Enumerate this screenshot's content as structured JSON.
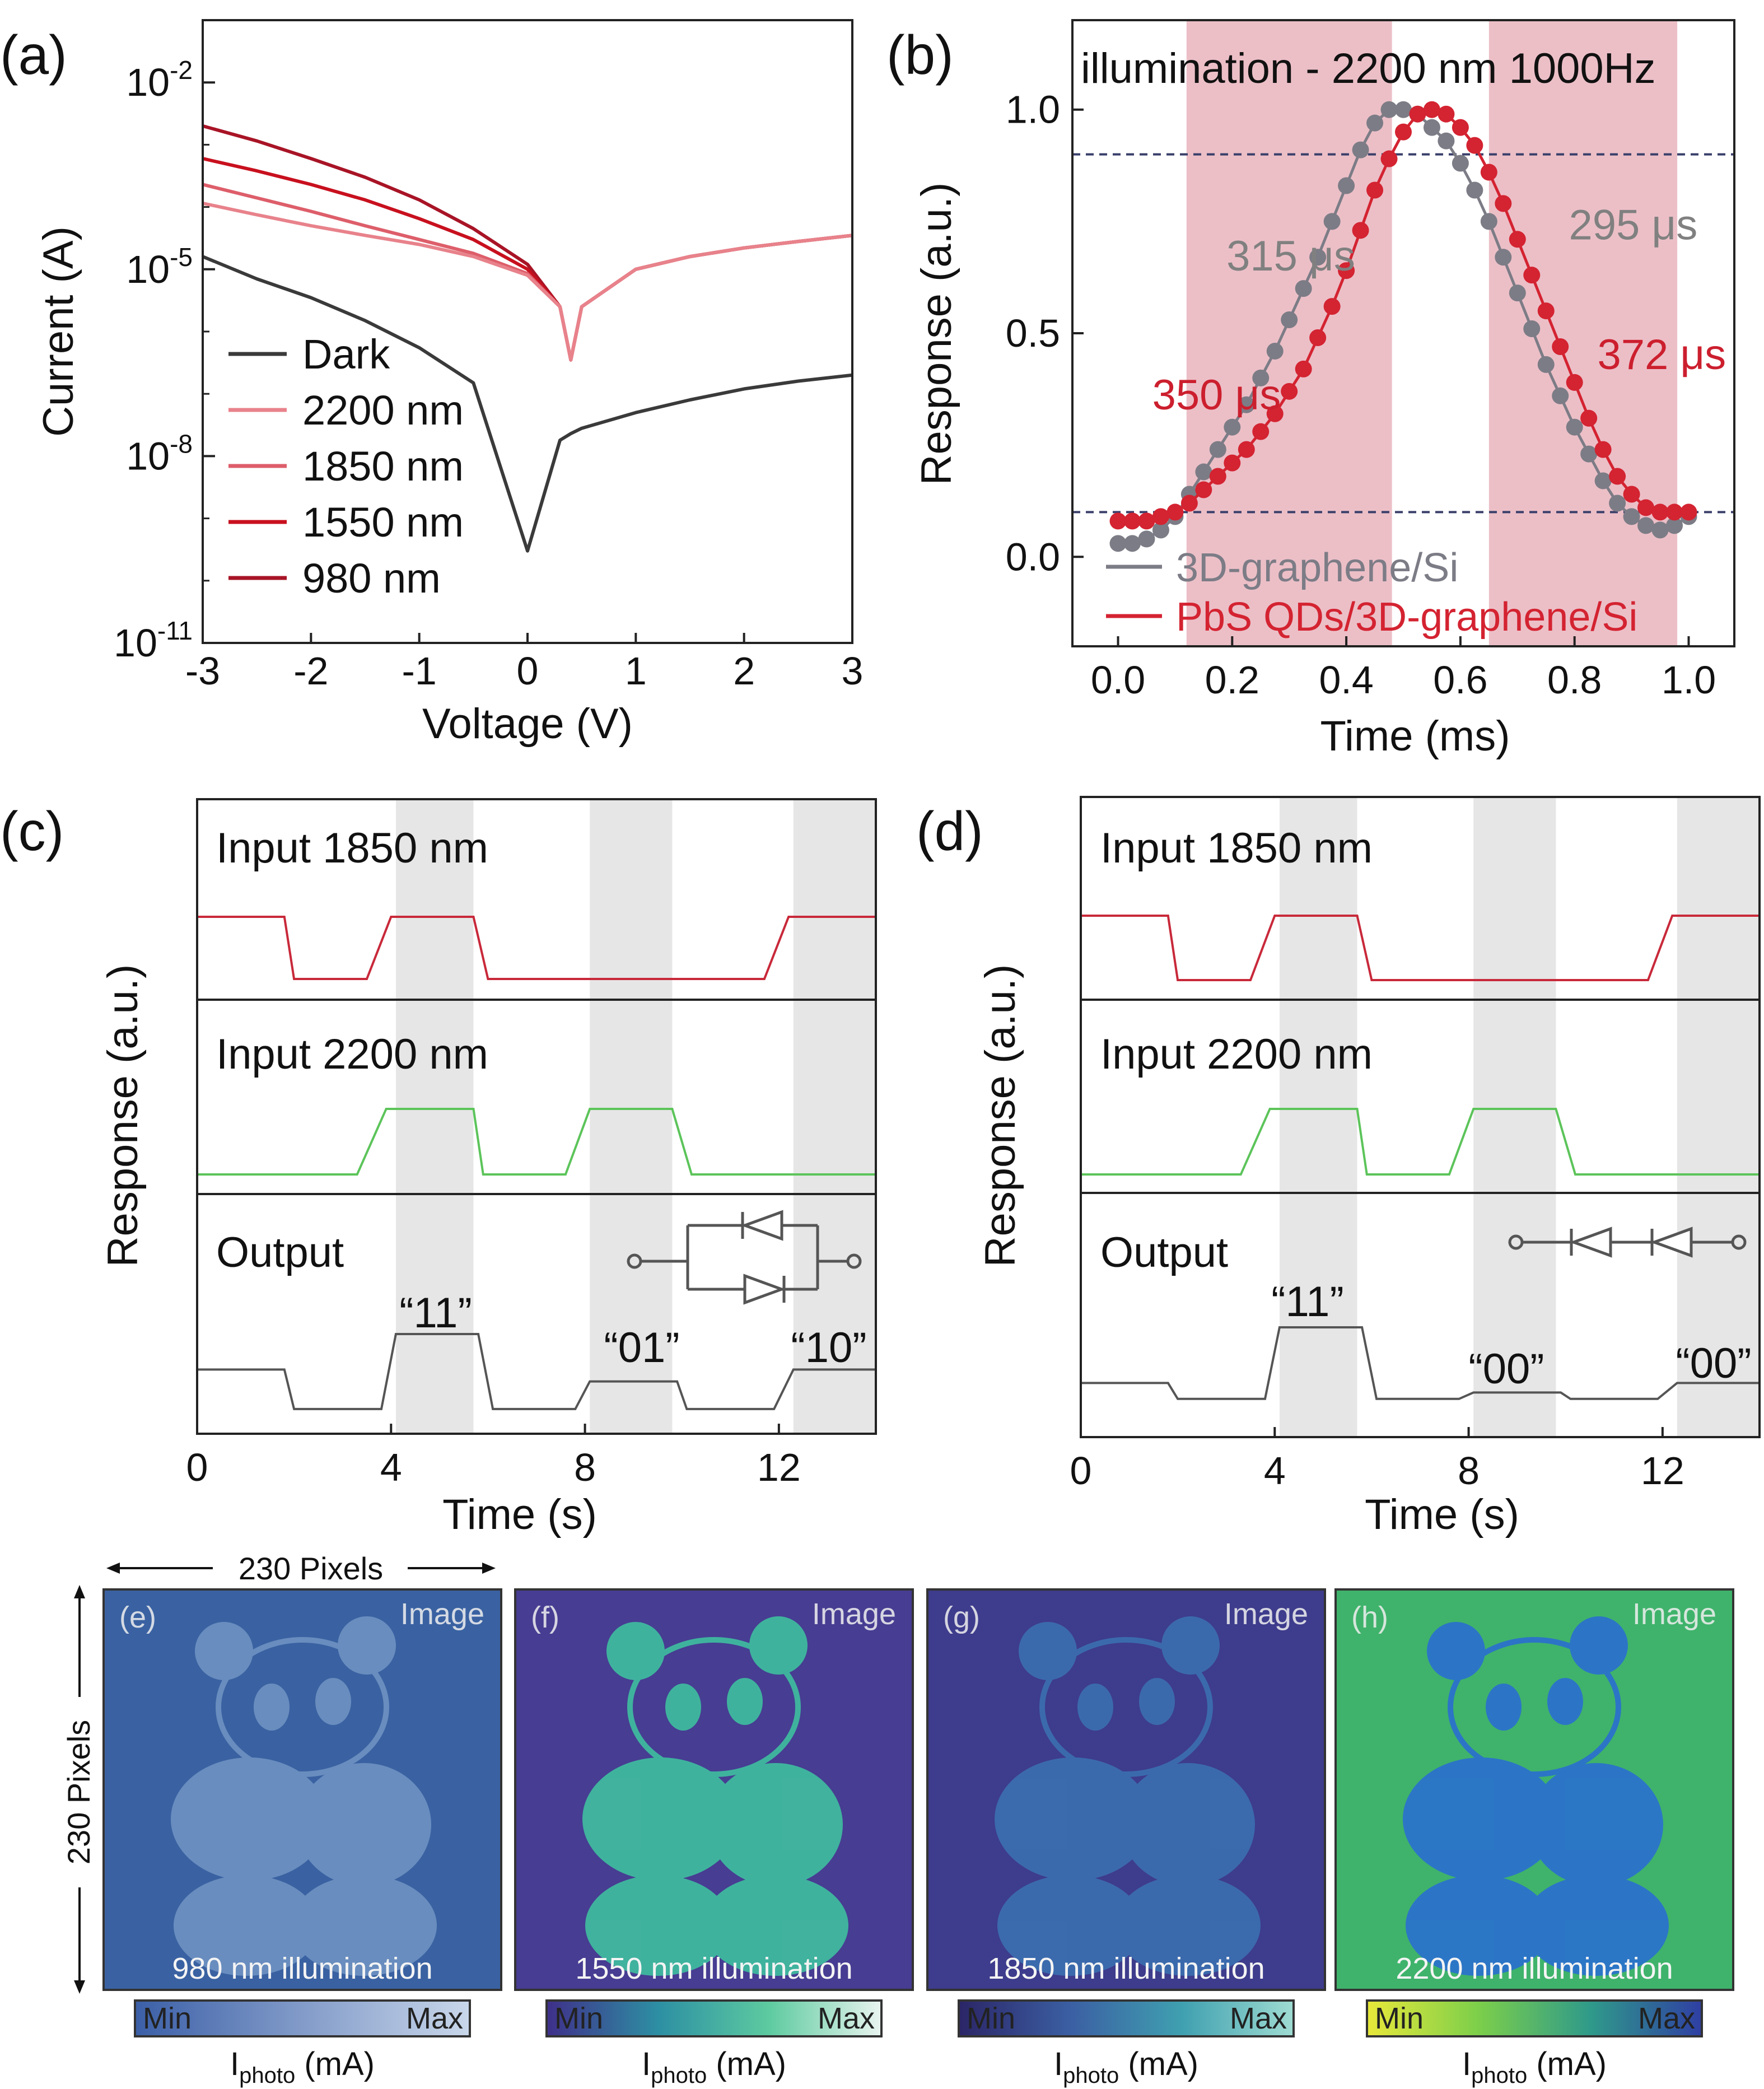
{
  "chart_data": [
    {
      "panel": "(a)",
      "type": "line",
      "xlabel": "Voltage (V)",
      "ylabel": "Current (A)",
      "xlim": [
        -3,
        3
      ],
      "ylim": [
        1e-11,
        0.1
      ],
      "yscale": "log",
      "xticks": [
        "-3",
        "-2",
        "-1",
        "0",
        "1",
        "2",
        "3"
      ],
      "yticks": [
        {
          "base": "10",
          "exp": "-2"
        },
        {
          "base": "10",
          "exp": "-5"
        },
        {
          "base": "10",
          "exp": "-8"
        },
        {
          "base": "10",
          "exp": "-11"
        }
      ],
      "legend_position": "bottom-left",
      "x": [
        -3,
        -2.5,
        -2,
        -1.5,
        -1,
        -0.5,
        0,
        0.3,
        0.4,
        0.5,
        1,
        1.5,
        2,
        2.5,
        3
      ],
      "series": [
        {
          "name": "Dark",
          "color": "#3a3a3a",
          "values": [
            1.6e-05,
            7e-06,
            3.5e-06,
            1.5e-06,
            5.5e-07,
            1.5e-07,
            3e-10,
            1.8e-08,
            2.3e-08,
            2.8e-08,
            5e-08,
            8e-08,
            1.2e-07,
            1.6e-07,
            2e-07
          ]
        },
        {
          "name": "2200 nm",
          "color": "#e8828b",
          "values": [
            0.000115,
            7.5e-05,
            5e-05,
            3.5e-05,
            2.5e-05,
            1.6e-05,
            8e-06,
            2.5e-06,
            3.5e-07,
            2.5e-06,
            1e-05,
            1.6e-05,
            2.2e-05,
            2.8e-05,
            3.5e-05
          ]
        },
        {
          "name": "1850 nm",
          "color": "#dd5e6a",
          "values": [
            0.00023,
            0.00014,
            8.5e-05,
            5e-05,
            3e-05,
            1.8e-05,
            8.5e-06,
            2.5e-06,
            3.5e-07,
            2.5e-06,
            1e-05,
            1.6e-05,
            2.2e-05,
            2.8e-05,
            3.5e-05
          ]
        },
        {
          "name": "1550 nm",
          "color": "#c8101e",
          "values": [
            0.0006,
            0.00038,
            0.00023,
            0.00013,
            6.5e-05,
            3e-05,
            1e-05,
            2.5e-06,
            3.5e-07,
            2.5e-06,
            1e-05,
            1.6e-05,
            2.2e-05,
            2.8e-05,
            3.5e-05
          ]
        },
        {
          "name": "980 nm",
          "color": "#a81426",
          "values": [
            0.002,
            0.00115,
            0.0006,
            0.0003,
            0.00013,
            4.5e-05,
            1.2e-05,
            2.5e-06,
            3.5e-07,
            2.5e-06,
            1e-05,
            1.6e-05,
            2.2e-05,
            2.8e-05,
            3.5e-05
          ]
        }
      ]
    },
    {
      "panel": "(b)",
      "type": "scatter",
      "title": "illumination - 2200 nm 1000Hz",
      "xlabel": "Time (ms)",
      "ylabel": "Response (a.u.)",
      "xlim": [
        -0.08,
        1.08
      ],
      "ylim": [
        -0.2,
        1.2
      ],
      "xticks": [
        "0.0",
        "0.2",
        "0.4",
        "0.6",
        "0.8",
        "1.0"
      ],
      "yticks": [
        "0.0",
        "0.5",
        "1.0"
      ],
      "reference_lines_y": [
        0.1,
        0.9
      ],
      "shaded_x_ranges": [
        [
          0.12,
          0.48
        ],
        [
          0.65,
          0.98
        ]
      ],
      "legend_position": "bottom",
      "annotations": [
        {
          "text": "315 μs",
          "color": "#808080",
          "x": 0.19,
          "y": 0.64
        },
        {
          "text": "350 μs",
          "color": "#cc1f2e",
          "x": 0.06,
          "y": 0.33
        },
        {
          "text": "295 μs",
          "color": "#808080",
          "x": 0.79,
          "y": 0.71
        },
        {
          "text": "372 μs",
          "color": "#cc1f2e",
          "x": 0.84,
          "y": 0.42
        }
      ],
      "series": [
        {
          "name": "3D-graphene/Si",
          "color": "#7c7c86",
          "x": [
            0.0,
            0.025,
            0.05,
            0.075,
            0.1,
            0.125,
            0.15,
            0.175,
            0.2,
            0.225,
            0.25,
            0.275,
            0.3,
            0.325,
            0.35,
            0.375,
            0.4,
            0.425,
            0.45,
            0.475,
            0.5,
            0.525,
            0.55,
            0.575,
            0.6,
            0.625,
            0.65,
            0.675,
            0.7,
            0.725,
            0.75,
            0.775,
            0.8,
            0.825,
            0.85,
            0.875,
            0.9,
            0.925,
            0.95,
            0.975,
            1.0
          ],
          "y": [
            0.03,
            0.03,
            0.04,
            0.06,
            0.09,
            0.14,
            0.19,
            0.24,
            0.29,
            0.34,
            0.4,
            0.46,
            0.53,
            0.6,
            0.67,
            0.75,
            0.83,
            0.91,
            0.97,
            1.0,
            1.0,
            0.99,
            0.96,
            0.93,
            0.88,
            0.82,
            0.75,
            0.67,
            0.59,
            0.51,
            0.43,
            0.36,
            0.29,
            0.23,
            0.17,
            0.12,
            0.09,
            0.07,
            0.06,
            0.07,
            0.09
          ]
        },
        {
          "name": "PbS QDs/3D-graphene/Si",
          "color": "#d42331",
          "x": [
            0.0,
            0.025,
            0.05,
            0.075,
            0.1,
            0.125,
            0.15,
            0.175,
            0.2,
            0.225,
            0.25,
            0.275,
            0.3,
            0.325,
            0.35,
            0.375,
            0.4,
            0.425,
            0.45,
            0.475,
            0.5,
            0.525,
            0.55,
            0.575,
            0.6,
            0.625,
            0.65,
            0.675,
            0.7,
            0.725,
            0.75,
            0.775,
            0.8,
            0.825,
            0.85,
            0.875,
            0.9,
            0.925,
            0.95,
            0.975,
            1.0
          ],
          "y": [
            0.08,
            0.08,
            0.08,
            0.09,
            0.1,
            0.12,
            0.15,
            0.18,
            0.21,
            0.24,
            0.28,
            0.32,
            0.37,
            0.42,
            0.49,
            0.56,
            0.64,
            0.73,
            0.82,
            0.89,
            0.95,
            0.99,
            1.0,
            0.99,
            0.96,
            0.92,
            0.86,
            0.79,
            0.71,
            0.63,
            0.55,
            0.47,
            0.39,
            0.31,
            0.24,
            0.18,
            0.14,
            0.11,
            0.1,
            0.1,
            0.1
          ]
        }
      ]
    },
    {
      "panel": "(c)",
      "type": "line",
      "xlabel": "Time (s)",
      "ylabel": "Response (a.u.)",
      "xlim": [
        0,
        14
      ],
      "xticks": [
        "0",
        "4",
        "8",
        "12"
      ],
      "shaded_x_ranges": [
        [
          4.1,
          5.7
        ],
        [
          8.1,
          9.8
        ],
        [
          12.3,
          14
        ]
      ],
      "gate": "OR (parallel diodes)",
      "series": [
        {
          "name": "Input 1850 nm",
          "color": "#c8293a",
          "x": [
            0,
            1.8,
            2.0,
            3.5,
            4.0,
            5.7,
            6.0,
            11.7,
            12.2,
            14
          ],
          "y": [
            1,
            1,
            0,
            0,
            1,
            1,
            0,
            0,
            1,
            1
          ]
        },
        {
          "name": "Input 2200 nm",
          "color": "#5cc45a",
          "x": [
            0,
            3.3,
            3.9,
            5.7,
            5.9,
            7.6,
            8.1,
            9.8,
            10.2,
            14
          ],
          "y": [
            0,
            0,
            1,
            1,
            0,
            0,
            1,
            1,
            0,
            0
          ]
        },
        {
          "name": "Output",
          "color": "#555555",
          "x": [
            0,
            1.8,
            2.0,
            3.8,
            4.1,
            5.8,
            6.1,
            7.8,
            8.1,
            9.9,
            10.1,
            11.9,
            12.3,
            14
          ],
          "y": [
            0.55,
            0.55,
            0.05,
            0.05,
            1.0,
            1.0,
            0.05,
            0.05,
            0.4,
            0.4,
            0.05,
            0.05,
            0.55,
            0.55
          ]
        }
      ],
      "labels": [
        "“11”",
        "“01”",
        "“10”"
      ]
    },
    {
      "panel": "(d)",
      "type": "line",
      "xlabel": "Time (s)",
      "ylabel": "Response (a.u.)",
      "xlim": [
        0,
        14
      ],
      "xticks": [
        "0",
        "4",
        "8",
        "12"
      ],
      "shaded_x_ranges": [
        [
          4.1,
          5.7
        ],
        [
          8.1,
          9.8
        ],
        [
          12.3,
          14
        ]
      ],
      "gate": "AND (series diodes)",
      "series": [
        {
          "name": "Input 1850 nm",
          "color": "#c8293a",
          "x": [
            0,
            1.8,
            2.0,
            3.5,
            4.0,
            5.7,
            6.0,
            11.7,
            12.2,
            14
          ],
          "y": [
            1,
            1,
            0,
            0,
            1,
            1,
            0,
            0,
            1,
            1
          ]
        },
        {
          "name": "Input 2200 nm",
          "color": "#5cc45a",
          "x": [
            0,
            3.3,
            3.9,
            5.7,
            5.9,
            7.6,
            8.1,
            9.8,
            10.2,
            14
          ],
          "y": [
            0,
            0,
            1,
            1,
            0,
            0,
            1,
            1,
            0,
            0
          ]
        },
        {
          "name": "Output",
          "color": "#555555",
          "x": [
            0,
            1.8,
            2.0,
            3.8,
            4.1,
            5.8,
            6.1,
            7.8,
            8.1,
            9.9,
            10.1,
            11.9,
            12.3,
            14
          ],
          "y": [
            0.3,
            0.3,
            0.1,
            0.1,
            1.0,
            1.0,
            0.1,
            0.1,
            0.18,
            0.18,
            0.1,
            0.1,
            0.3,
            0.3
          ]
        }
      ],
      "labels": [
        "“11”",
        "“00”",
        "“00”"
      ]
    },
    {
      "panel": "(e)-(h)",
      "type": "heatmap",
      "images": [
        {
          "label": "(e)",
          "corner": "Image",
          "caption": "980 nm illumination",
          "bg": "#3a62a2",
          "fg": "#6f92c2",
          "cmap": [
            "#3b5fa7",
            "#c9d7ea"
          ],
          "cbar_label": "I",
          "cbar_sub": "photo",
          "cbar_unit": " (mA)"
        },
        {
          "label": "(f)",
          "corner": "Image",
          "caption": "1550 nm illumination",
          "bg": "#473d92",
          "fg": "#3fbfa0",
          "cmap": [
            "#3f2f8a",
            "#2d8fa3",
            "#5ecba0",
            "#e9f4f0"
          ],
          "cbar_label": "I",
          "cbar_sub": "photo",
          "cbar_unit": " (mA)"
        },
        {
          "label": "(g)",
          "corner": "Image",
          "caption": "1850 nm illumination",
          "bg": "#3e3c8c",
          "fg": "#3b6fb0",
          "cmap": [
            "#2b2566",
            "#3b5fa3",
            "#3fa0b0",
            "#9fdcd2"
          ],
          "cbar_label": "I",
          "cbar_sub": "photo",
          "cbar_unit": " (mA)"
        },
        {
          "label": "(h)",
          "corner": "Image",
          "caption": "2200 nm illumination",
          "bg": "#3fb36b",
          "fg": "#2a6fd0",
          "cmap": [
            "#e8e83a",
            "#7ccf4a",
            "#2f9a8a",
            "#2f3fa3"
          ],
          "cbar_label": "I",
          "cbar_sub": "photo",
          "cbar_unit": " (mA)"
        }
      ],
      "colorbar_min": "Min",
      "colorbar_max": "Max",
      "width_label": "230 Pixels",
      "height_label": "230 Pixels"
    }
  ],
  "panel_labels": {
    "a": "(a)",
    "b": "(b)",
    "c": "(c)",
    "d": "(d)"
  },
  "trace_titles": {
    "in1": "Input 1850 nm",
    "in2": "Input 2200 nm",
    "out": "Output"
  }
}
